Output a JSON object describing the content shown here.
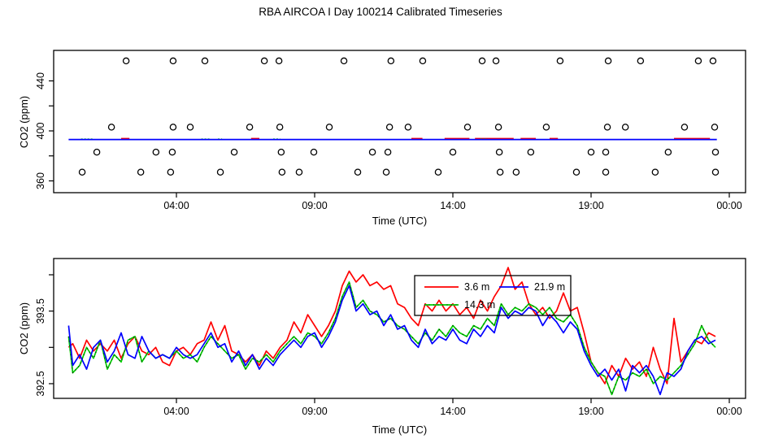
{
  "title": "RBA AIRCOA I Day 100214  Calibrated Timeseries",
  "colors": {
    "red": "#FF0000",
    "green": "#00CD00",
    "blue": "#0000FF",
    "axis": "#000000",
    "background": "#FFFFFF"
  },
  "x_ticks": [
    {
      "t": 4,
      "label": "04:00"
    },
    {
      "t": 9,
      "label": "09:00"
    },
    {
      "t": 14,
      "label": "14:00"
    },
    {
      "t": 19,
      "label": "19:00"
    },
    {
      "t": 24,
      "label": "00:00"
    }
  ],
  "chart_data": [
    {
      "type": "scatter",
      "panel": "top",
      "xlabel": "Time (UTC)",
      "ylabel": "CO2 (ppm)",
      "xlim": [
        -0.45,
        24.6
      ],
      "ylim": [
        350,
        464
      ],
      "y_ticks": [
        {
          "v": 360,
          "label": "360"
        },
        {
          "v": 380,
          "label": ""
        },
        {
          "v": 400,
          "label": "400"
        },
        {
          "v": 420,
          "label": ""
        },
        {
          "v": 440,
          "label": "440"
        }
      ],
      "ambient": {
        "level_ppm": 393.1,
        "t_start": 0.1,
        "t_end": 23.55,
        "red_segments": [
          [
            2.0,
            2.3
          ],
          [
            6.7,
            7.0
          ],
          [
            12.5,
            12.9
          ],
          [
            13.7,
            14.6
          ],
          [
            14.8,
            16.2
          ],
          [
            16.45,
            17.0
          ],
          [
            17.5,
            17.8
          ],
          [
            22.0,
            23.3
          ]
        ],
        "green_segments": [
          [
            0.55,
            1.0
          ],
          [
            4.9,
            5.25
          ],
          [
            5.5,
            5.65
          ],
          [
            7.5,
            7.75
          ],
          [
            15.0,
            15.25
          ]
        ]
      },
      "calibration_circles": [
        {
          "value": 456,
          "times": [
            2.18,
            3.88,
            5.03,
            7.18,
            7.71,
            10.06,
            11.76,
            12.91,
            15.06,
            15.56,
            17.88,
            19.62,
            20.79,
            22.88,
            23.41
          ]
        },
        {
          "value": 403,
          "times": [
            1.65,
            3.88,
            4.5,
            6.65,
            7.74,
            9.53,
            11.71,
            12.38,
            14.53,
            15.65,
            17.38,
            19.59,
            20.24,
            22.38,
            23.47
          ]
        },
        {
          "value": 383,
          "times": [
            1.12,
            3.26,
            3.85,
            6.09,
            7.79,
            8.97,
            11.09,
            11.65,
            14.0,
            15.68,
            16.82,
            19.0,
            19.53,
            21.79,
            23.5
          ]
        },
        {
          "value": 367,
          "times": [
            0.59,
            2.71,
            3.79,
            5.59,
            7.82,
            8.44,
            10.56,
            11.59,
            13.47,
            15.71,
            16.29,
            18.47,
            19.53,
            21.32,
            23.5
          ]
        }
      ]
    },
    {
      "type": "line",
      "panel": "bottom",
      "xlabel": "Time (UTC)",
      "ylabel": "CO2 (ppm)",
      "xlim": [
        -0.45,
        24.6
      ],
      "ylim": [
        392.3,
        394.22
      ],
      "y_ticks": [
        {
          "v": 392.5,
          "label": "392.5"
        },
        {
          "v": 393.0,
          "label": ""
        },
        {
          "v": 393.5,
          "label": "393.5"
        },
        {
          "v": 394.0,
          "label": ""
        }
      ],
      "x": [
        0.1,
        0.25,
        0.5,
        0.75,
        1,
        1.25,
        1.5,
        1.75,
        2,
        2.25,
        2.5,
        2.75,
        3,
        3.25,
        3.5,
        3.75,
        4,
        4.25,
        4.5,
        4.75,
        5,
        5.25,
        5.5,
        5.75,
        6,
        6.25,
        6.5,
        6.75,
        7,
        7.25,
        7.5,
        7.75,
        8,
        8.25,
        8.5,
        8.75,
        9,
        9.25,
        9.5,
        9.75,
        10,
        10.25,
        10.5,
        10.75,
        11,
        11.25,
        11.5,
        11.75,
        12,
        12.25,
        12.5,
        12.75,
        13,
        13.25,
        13.5,
        13.75,
        14,
        14.25,
        14.5,
        14.75,
        15,
        15.25,
        15.5,
        15.75,
        16,
        16.25,
        16.5,
        16.75,
        17,
        17.25,
        17.5,
        17.75,
        18,
        18.25,
        18.5,
        18.75,
        19,
        19.25,
        19.5,
        19.75,
        20,
        20.25,
        20.5,
        20.75,
        21,
        21.25,
        21.5,
        21.75,
        22,
        22.25,
        22.5,
        22.75,
        23,
        23.25,
        23.5
      ],
      "series": [
        {
          "name": "3.6 m",
          "color": "#FF0000",
          "dotted_overlay": false,
          "values": [
            393,
            393.05,
            392.85,
            393.1,
            392.95,
            393.05,
            392.95,
            393.1,
            392.85,
            393.05,
            393.15,
            392.95,
            392.9,
            393,
            392.8,
            392.75,
            392.95,
            393,
            392.9,
            393.05,
            393.1,
            393.35,
            393.1,
            393.3,
            392.95,
            392.9,
            392.8,
            392.9,
            392.75,
            392.95,
            392.85,
            393,
            393.1,
            393.35,
            393.2,
            393.45,
            393.3,
            393.15,
            393.3,
            393.5,
            393.85,
            394.05,
            393.9,
            394,
            393.85,
            393.9,
            393.8,
            393.85,
            393.6,
            393.55,
            393.4,
            393.3,
            393.6,
            393.5,
            393.65,
            393.5,
            393.6,
            393.45,
            393.55,
            393.4,
            393.65,
            393.5,
            393.7,
            393.85,
            394.1,
            393.8,
            393.9,
            393.6,
            393.45,
            393.55,
            393.4,
            393.5,
            393.75,
            393.5,
            393.55,
            393.2,
            392.8,
            392.65,
            392.5,
            392.75,
            392.6,
            392.85,
            392.7,
            392.8,
            392.6,
            393,
            392.7,
            392.5,
            393.4,
            392.8,
            392.95,
            393.1,
            393.05,
            393.2,
            393.15
          ]
        },
        {
          "name": "14.3 m",
          "color": "#00CD00",
          "dotted_overlay": true,
          "values": [
            393.15,
            392.65,
            392.75,
            393,
            392.85,
            393.1,
            392.7,
            392.9,
            392.8,
            393.1,
            393.15,
            392.8,
            392.95,
            392.85,
            392.9,
            392.85,
            392.95,
            392.85,
            392.9,
            392.8,
            393,
            393.15,
            393.05,
            392.95,
            392.85,
            392.9,
            392.7,
            392.85,
            392.8,
            392.9,
            392.8,
            392.95,
            393.05,
            393.15,
            393.05,
            393.2,
            393.15,
            393.05,
            393.2,
            393.4,
            393.7,
            393.9,
            393.55,
            393.65,
            393.5,
            393.45,
            393.35,
            393.4,
            393.3,
            393.25,
            393.15,
            393.05,
            393.2,
            393.1,
            393.25,
            393.15,
            393.3,
            393.2,
            393.15,
            393.3,
            393.25,
            393.4,
            393.3,
            393.6,
            393.45,
            393.55,
            393.5,
            393.6,
            393.55,
            393.45,
            393.55,
            393.4,
            393.35,
            393.45,
            393.3,
            393,
            392.8,
            392.65,
            392.6,
            392.35,
            392.6,
            392.55,
            392.65,
            392.6,
            392.7,
            392.5,
            392.6,
            392.55,
            392.65,
            392.75,
            392.9,
            393.05,
            393.3,
            393.1,
            393
          ]
        },
        {
          "name": "21.9 m",
          "color": "#0000FF",
          "dotted_overlay": false,
          "values": [
            393.3,
            392.75,
            392.9,
            392.7,
            393,
            393.1,
            392.8,
            392.95,
            393.2,
            392.9,
            392.85,
            393.15,
            392.95,
            392.85,
            392.9,
            392.85,
            393,
            392.9,
            392.85,
            392.9,
            393.05,
            393.2,
            393,
            393.05,
            392.8,
            392.95,
            392.75,
            392.9,
            392.7,
            392.85,
            392.75,
            392.9,
            393,
            393.1,
            393,
            393.15,
            393.2,
            393,
            393.15,
            393.35,
            393.65,
            393.85,
            393.5,
            393.6,
            393.45,
            393.5,
            393.3,
            393.45,
            393.25,
            393.3,
            393.1,
            393,
            393.25,
            393.05,
            393.15,
            393.1,
            393.25,
            393.1,
            393.05,
            393.25,
            393.15,
            393.3,
            393.2,
            393.55,
            393.4,
            393.5,
            393.45,
            393.55,
            393.5,
            393.3,
            393.45,
            393.35,
            393.2,
            393.35,
            393.25,
            392.95,
            392.75,
            392.6,
            392.7,
            392.55,
            392.7,
            392.4,
            392.75,
            392.65,
            392.75,
            392.6,
            392.35,
            392.65,
            392.6,
            392.7,
            392.95,
            393.1,
            393.15,
            393.05,
            393.1
          ]
        }
      ],
      "legend": {
        "entries": [
          {
            "label": "3.6 m",
            "color": "#FF0000",
            "dotted_overlay": false
          },
          {
            "label": "21.9 m",
            "color": "#0000FF",
            "dotted_overlay": false
          },
          {
            "label": "14.3 m",
            "color": "#00CD00",
            "dotted_overlay": true
          }
        ]
      }
    }
  ]
}
